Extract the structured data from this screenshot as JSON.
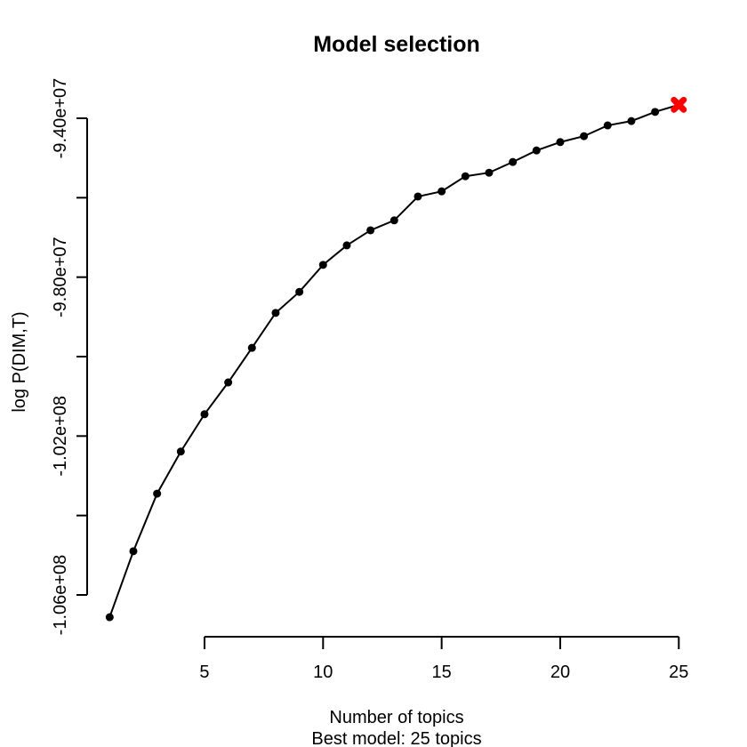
{
  "window": {
    "background": "#ffffff",
    "foreground": "#000000"
  },
  "chart_data": {
    "type": "line",
    "title": "Model selection",
    "xlabel": "Number of topics",
    "subtitle": "Best model: 25 topics",
    "ylabel": "log P(DIM,T)",
    "grid": false,
    "legend": false,
    "series_color": "#000000",
    "point_marker": "filled-circle",
    "x": [
      1,
      2,
      3,
      4,
      5,
      6,
      7,
      8,
      9,
      10,
      11,
      12,
      13,
      14,
      15,
      16,
      17,
      18,
      19,
      20,
      21,
      22,
      23,
      24,
      25
    ],
    "y": [
      -106560000,
      -104900000,
      -103450000,
      -102390000,
      -101450000,
      -100650000,
      -99780000,
      -98900000,
      -98370000,
      -97690000,
      -97200000,
      -96820000,
      -96570000,
      -95970000,
      -95840000,
      -95460000,
      -95370000,
      -95100000,
      -94810000,
      -94600000,
      -94450000,
      -94180000,
      -94070000,
      -93840000,
      -93660000
    ],
    "best_model": {
      "x": 25,
      "y": -93660000,
      "marker": "thick-x",
      "color": "#ff0000"
    },
    "x_ticks": {
      "values": [
        5,
        10,
        15,
        20,
        25
      ],
      "labels": [
        "5",
        "10",
        "15",
        "20",
        "25"
      ]
    },
    "y_ticks": {
      "values": [
        -94000000,
        -96000000,
        -98000000,
        -100000000,
        -102000000,
        -104000000,
        -106000000
      ],
      "labels": [
        "-9.40e+07",
        "",
        "-9.80e+07",
        "",
        "-1.02e+08",
        "",
        "-1.06e+08"
      ]
    },
    "xlim": [
      1,
      25
    ],
    "ylim": [
      -106000000,
      -94000000
    ]
  }
}
